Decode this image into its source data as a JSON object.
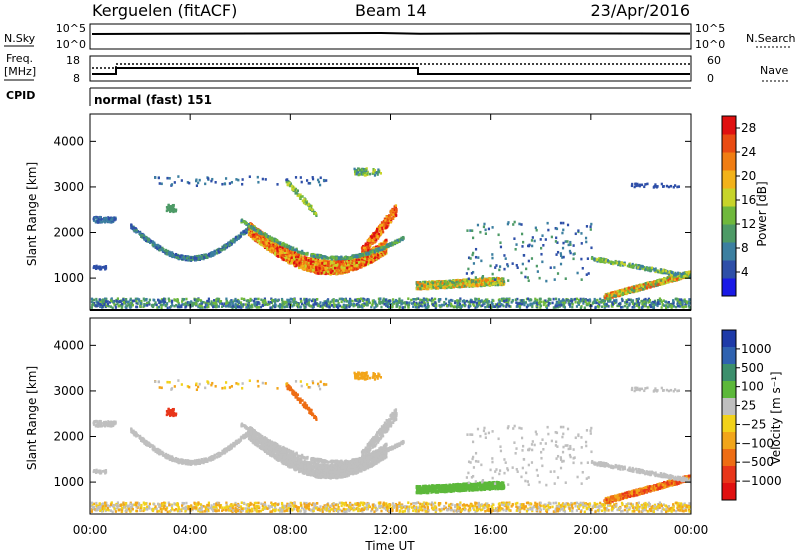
{
  "header": {
    "station": "Kerguelen (fitACF)",
    "beam": "Beam 14",
    "date": "23/Apr/2016"
  },
  "panels": {
    "nsky": {
      "left_label": "N.Sky",
      "right_label": "N.Search",
      "left_ticks": [
        "10^5",
        "10^0"
      ],
      "right_ticks": [
        "10^5",
        "10^0"
      ]
    },
    "freq": {
      "left_label_line1": "Freq.",
      "left_label_line2": "[MHz]",
      "right_label": "Nave",
      "left_ticks": [
        "18",
        "8"
      ],
      "right_ticks": [
        "60",
        "0"
      ]
    },
    "cpid": {
      "label": "CPID",
      "mode": "normal (fast) 151"
    }
  },
  "colors": {
    "power_scale": [
      "#1a1ae6",
      "#2e4fa8",
      "#3c7fa0",
      "#4d9a66",
      "#6fb83c",
      "#c7d42a",
      "#f2b21a",
      "#f07d12",
      "#e94b12",
      "#e01010"
    ],
    "velocity_scale": [
      "#1e3aa8",
      "#2f62b0",
      "#3c8f6c",
      "#5cb83a",
      "#bfbfbf",
      "#f2d21a",
      "#f2a51a",
      "#ee6d14",
      "#e8361a",
      "#e01010"
    ]
  },
  "chart_data": [
    {
      "type": "heatmap",
      "name": "power",
      "ylabel": "Slant Range [km]",
      "xlabel": "",
      "ylim": [
        300,
        4600
      ],
      "xlim": [
        0,
        24
      ],
      "yticks": [
        "1000",
        "2000",
        "3000",
        "4000"
      ],
      "xticks": [
        "00:00",
        "04:00",
        "08:00",
        "12:00",
        "16:00",
        "20:00",
        "00:00"
      ],
      "colorbar_label": "Power [dB]",
      "colorbar_ticks": [
        "28",
        "24",
        "20",
        "16",
        "12",
        "8",
        "4"
      ],
      "colorbar_range": [
        0,
        30
      ]
    },
    {
      "type": "heatmap",
      "name": "velocity",
      "ylabel": "Slant Range [km]",
      "xlabel": "Time UT",
      "ylim": [
        300,
        4600
      ],
      "xlim": [
        0,
        24
      ],
      "yticks": [
        "1000",
        "2000",
        "3000",
        "4000"
      ],
      "xticks": [
        "00:00",
        "04:00",
        "08:00",
        "12:00",
        "16:00",
        "20:00",
        "00:00"
      ],
      "colorbar_label": "Velocity [m s⁻¹]",
      "colorbar_ticks": [
        "1000",
        "500",
        "100",
        "25",
        "−25",
        "−100",
        "−500",
        "−1000"
      ]
    }
  ]
}
